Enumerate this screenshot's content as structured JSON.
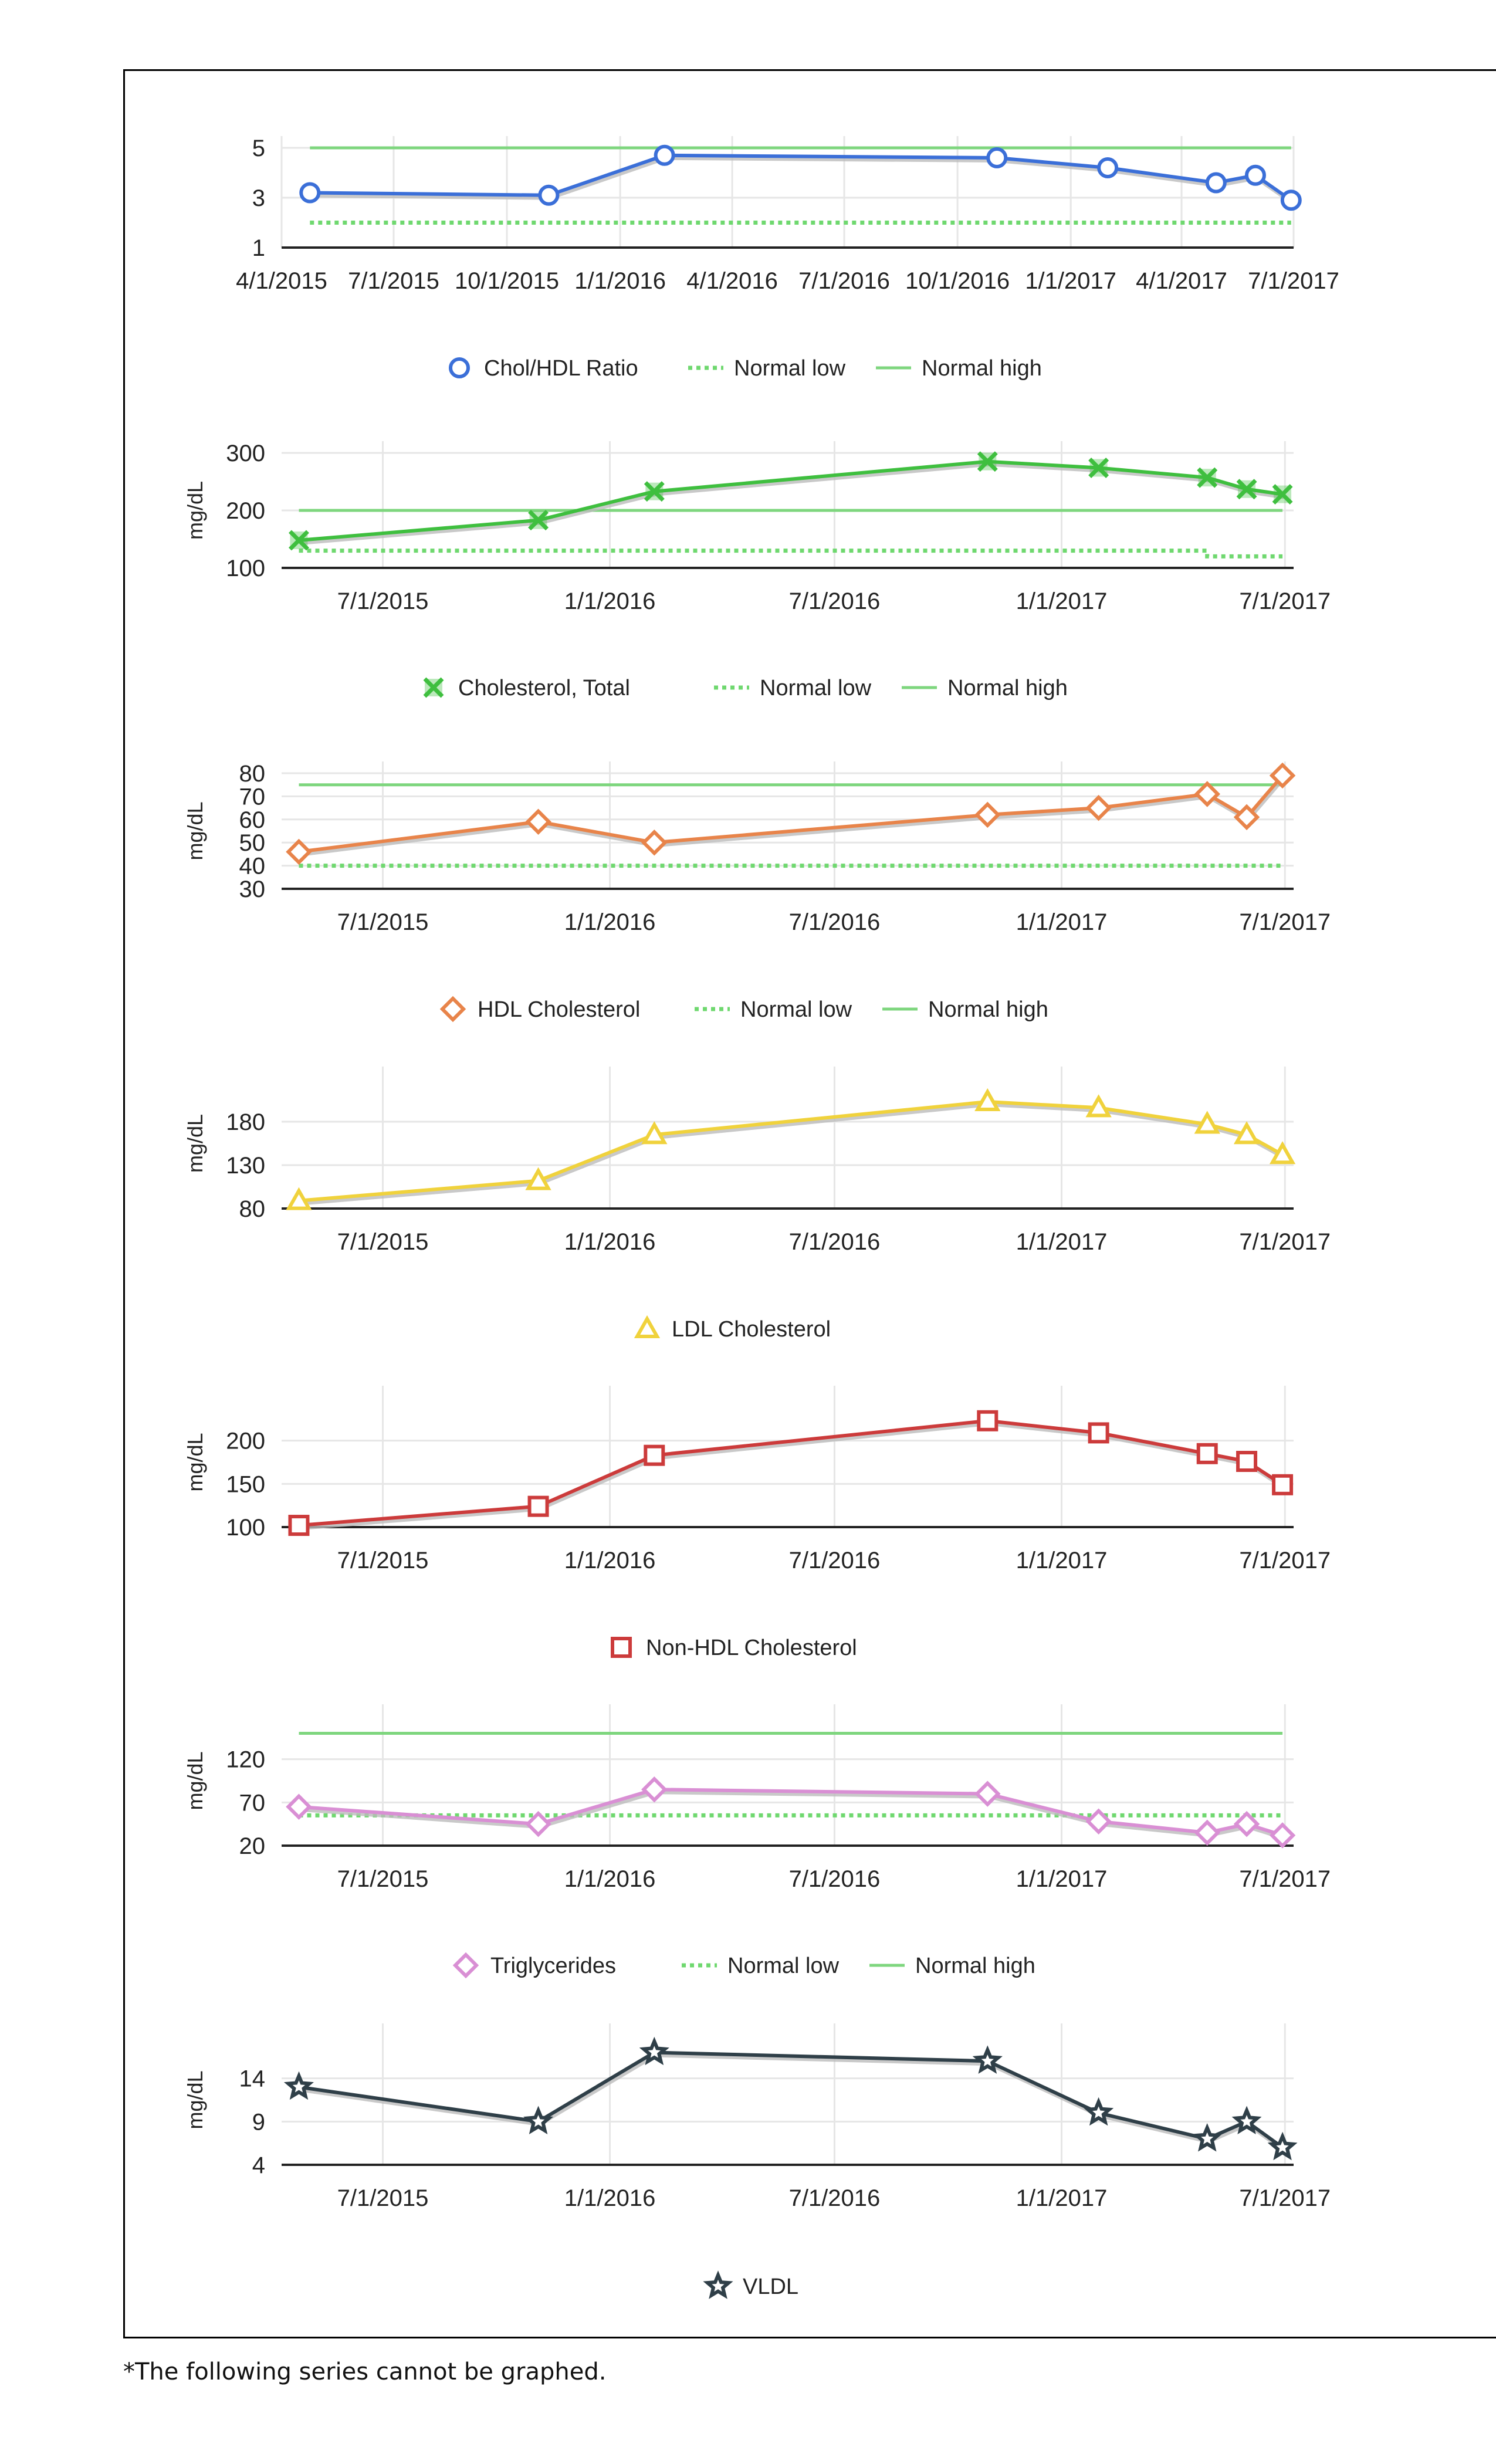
{
  "footnote": "*The following series cannot be graphed.",
  "chart_data": [
    {
      "type": "line",
      "ylabel": "",
      "ylim": [
        1,
        5
      ],
      "yticks": [
        1,
        3,
        5
      ],
      "xlim": [
        "2015-04-01",
        "2017-07-01"
      ],
      "xticks": [
        "4/1/2015",
        "7/1/2015",
        "10/1/2015",
        "1/1/2016",
        "4/1/2016",
        "7/1/2016",
        "10/1/2016",
        "1/1/2017",
        "4/1/2017",
        "7/1/2017"
      ],
      "grid": true,
      "legend_position": "bottom",
      "series": [
        {
          "name": "Chol/HDL Ratio",
          "color": "#3b6fd8",
          "marker": "circle",
          "points": [
            [
              "2015-04-24",
              3.2
            ],
            [
              "2015-11-04",
              3.1
            ],
            [
              "2016-02-06",
              4.7
            ],
            [
              "2016-11-02",
              4.6
            ],
            [
              "2017-01-31",
              4.2
            ],
            [
              "2017-04-29",
              3.6
            ],
            [
              "2017-05-31",
              3.9
            ],
            [
              "2017-06-29",
              2.9
            ]
          ]
        },
        {
          "name": "Normal low",
          "color": "#6fd86f",
          "style": "dotted",
          "points": [
            [
              "2015-04-24",
              2
            ],
            [
              "2017-06-29",
              2
            ]
          ]
        },
        {
          "name": "Normal high",
          "color": "#7ed67e",
          "style": "solid",
          "points": [
            [
              "2015-04-24",
              5
            ],
            [
              "2017-06-29",
              5
            ]
          ]
        }
      ]
    },
    {
      "type": "line",
      "ylabel": "mg/dL",
      "ylim": [
        100,
        300
      ],
      "yticks": [
        100,
        200,
        300
      ],
      "xlim": [
        "2015-04-10",
        "2017-07-08"
      ],
      "xticks": [
        "7/1/2015",
        "1/1/2016",
        "7/1/2016",
        "1/1/2017",
        "7/1/2017"
      ],
      "grid": true,
      "legend_position": "bottom",
      "series": [
        {
          "name": "Cholesterol, Total",
          "color": "#3fbf3f",
          "marker": "x",
          "points": [
            [
              "2015-04-24",
              148
            ],
            [
              "2015-11-04",
              183
            ],
            [
              "2016-02-06",
              233
            ],
            [
              "2016-11-02",
              285
            ],
            [
              "2017-01-31",
              274
            ],
            [
              "2017-04-29",
              257
            ],
            [
              "2017-05-31",
              237
            ],
            [
              "2017-06-29",
              228
            ]
          ]
        },
        {
          "name": "Normal low",
          "color": "#6fd86f",
          "style": "dotted",
          "points": [
            [
              "2015-04-24",
              130
            ],
            [
              "2017-04-29",
              130
            ],
            [
              "2017-04-29",
              120
            ],
            [
              "2017-06-29",
              120
            ]
          ]
        },
        {
          "name": "Normal high",
          "color": "#7ed67e",
          "style": "solid",
          "points": [
            [
              "2015-04-24",
              200
            ],
            [
              "2017-06-29",
              200
            ]
          ]
        }
      ]
    },
    {
      "type": "line",
      "ylabel": "mg/dL",
      "ylim": [
        30,
        80
      ],
      "yticks": [
        30,
        40,
        50,
        60,
        70,
        80
      ],
      "xlim": [
        "2015-04-10",
        "2017-07-08"
      ],
      "xticks": [
        "7/1/2015",
        "1/1/2016",
        "7/1/2016",
        "1/1/2017",
        "7/1/2017"
      ],
      "grid": true,
      "legend_position": "bottom",
      "series": [
        {
          "name": "HDL Cholesterol",
          "color": "#e8844a",
          "marker": "diamond",
          "points": [
            [
              "2015-04-24",
              46
            ],
            [
              "2015-11-04",
              59
            ],
            [
              "2016-02-06",
              50
            ],
            [
              "2016-11-02",
              62
            ],
            [
              "2017-01-31",
              65
            ],
            [
              "2017-04-29",
              71
            ],
            [
              "2017-05-31",
              61
            ],
            [
              "2017-06-29",
              79
            ]
          ]
        },
        {
          "name": "Normal low",
          "color": "#6fd86f",
          "style": "dotted",
          "points": [
            [
              "2015-04-24",
              40
            ],
            [
              "2017-06-29",
              40
            ]
          ]
        },
        {
          "name": "Normal high",
          "color": "#7ed67e",
          "style": "solid",
          "points": [
            [
              "2015-04-24",
              75
            ],
            [
              "2017-06-29",
              75
            ]
          ]
        }
      ]
    },
    {
      "type": "line",
      "ylabel": "mg/dL",
      "ylim": [
        80,
        230
      ],
      "yticks": [
        80,
        130,
        180
      ],
      "xlim": [
        "2015-04-10",
        "2017-07-08"
      ],
      "xticks": [
        "7/1/2015",
        "1/1/2016",
        "7/1/2016",
        "1/1/2017",
        "7/1/2017"
      ],
      "grid": true,
      "legend_position": "bottom",
      "series": [
        {
          "name": "LDL Cholesterol",
          "color": "#f0d23c",
          "marker": "triangle",
          "points": [
            [
              "2015-04-24",
              89
            ],
            [
              "2015-11-04",
              112
            ],
            [
              "2016-02-06",
              165
            ],
            [
              "2016-11-02",
              203
            ],
            [
              "2017-01-31",
              196
            ],
            [
              "2017-04-29",
              177
            ],
            [
              "2017-05-31",
              165
            ],
            [
              "2017-06-29",
              142
            ]
          ]
        }
      ]
    },
    {
      "type": "line",
      "ylabel": "mg/dL",
      "ylim": [
        100,
        250
      ],
      "yticks": [
        100,
        150,
        200
      ],
      "xlim": [
        "2015-04-10",
        "2017-07-08"
      ],
      "xticks": [
        "7/1/2015",
        "1/1/2016",
        "7/1/2016",
        "1/1/2017",
        "7/1/2017"
      ],
      "grid": true,
      "legend_position": "bottom",
      "series": [
        {
          "name": "Non-HDL Cholesterol",
          "color": "#cc3b3b",
          "marker": "square",
          "points": [
            [
              "2015-04-24",
              102
            ],
            [
              "2015-11-04",
              124
            ],
            [
              "2016-02-06",
              183
            ],
            [
              "2016-11-02",
              223
            ],
            [
              "2017-01-31",
              209
            ],
            [
              "2017-04-29",
              185
            ],
            [
              "2017-05-31",
              176
            ],
            [
              "2017-06-29",
              149
            ]
          ]
        }
      ]
    },
    {
      "type": "line",
      "ylabel": "mg/dL",
      "ylim": [
        20,
        170
      ],
      "yticks": [
        20,
        70,
        120
      ],
      "xlim": [
        "2015-04-10",
        "2017-07-08"
      ],
      "xticks": [
        "7/1/2015",
        "1/1/2016",
        "7/1/2016",
        "1/1/2017",
        "7/1/2017"
      ],
      "grid": true,
      "legend_position": "bottom",
      "series": [
        {
          "name": "Triglycerides",
          "color": "#d98fd4",
          "marker": "diamond",
          "points": [
            [
              "2015-04-24",
              65
            ],
            [
              "2015-11-04",
              45
            ],
            [
              "2016-02-06",
              85
            ],
            [
              "2016-11-02",
              80
            ],
            [
              "2017-01-31",
              48
            ],
            [
              "2017-04-29",
              35
            ],
            [
              "2017-05-31",
              45
            ],
            [
              "2017-06-29",
              32
            ]
          ]
        },
        {
          "name": "Normal low",
          "color": "#6fd86f",
          "style": "dotted",
          "points": [
            [
              "2015-04-24",
              55
            ],
            [
              "2017-06-29",
              55
            ]
          ]
        },
        {
          "name": "Normal high",
          "color": "#7ed67e",
          "style": "solid",
          "points": [
            [
              "2015-04-24",
              150
            ],
            [
              "2017-06-29",
              150
            ]
          ]
        }
      ]
    },
    {
      "type": "line",
      "ylabel": "mg/dL",
      "ylim": [
        4,
        19
      ],
      "yticks": [
        4,
        9,
        14
      ],
      "xlim": [
        "2015-04-10",
        "2017-07-08"
      ],
      "xticks": [
        "7/1/2015",
        "1/1/2016",
        "7/1/2016",
        "1/1/2017",
        "7/1/2017"
      ],
      "grid": true,
      "legend_position": "bottom",
      "series": [
        {
          "name": "VLDL",
          "color": "#2f3f48",
          "marker": "star",
          "points": [
            [
              "2015-04-24",
              13
            ],
            [
              "2015-11-04",
              9
            ],
            [
              "2016-02-06",
              17
            ],
            [
              "2016-11-02",
              16
            ],
            [
              "2017-01-31",
              10
            ],
            [
              "2017-04-29",
              7
            ],
            [
              "2017-05-31",
              9
            ],
            [
              "2017-06-29",
              6
            ]
          ]
        }
      ]
    }
  ]
}
